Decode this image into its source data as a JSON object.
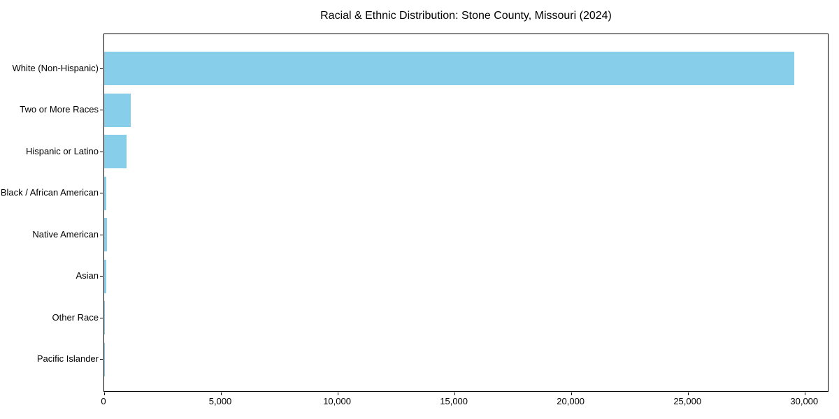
{
  "chart_data": {
    "type": "bar",
    "orientation": "horizontal",
    "title": "Racial & Ethnic Distribution: Stone County, Missouri (2024)",
    "categories": [
      "White (Non-Hispanic)",
      "Two or More Races",
      "Hispanic or Latino",
      "Black / African American",
      "Native American",
      "Asian",
      "Other Race",
      "Pacific Islander"
    ],
    "values": [
      29550,
      1140,
      950,
      100,
      120,
      85,
      40,
      12
    ],
    "xlabel": "",
    "ylabel": "",
    "xlim": [
      0,
      31040
    ],
    "x_ticks": [
      0,
      5000,
      10000,
      15000,
      20000,
      25000,
      30000
    ],
    "x_tick_labels": [
      "0",
      "5,000",
      "10,000",
      "15,000",
      "20,000",
      "25,000",
      "30,000"
    ],
    "bar_color": "#87CEEB",
    "spine_color": "#000000",
    "background_color": "#ffffff",
    "grid": false,
    "legend_position": "none"
  }
}
